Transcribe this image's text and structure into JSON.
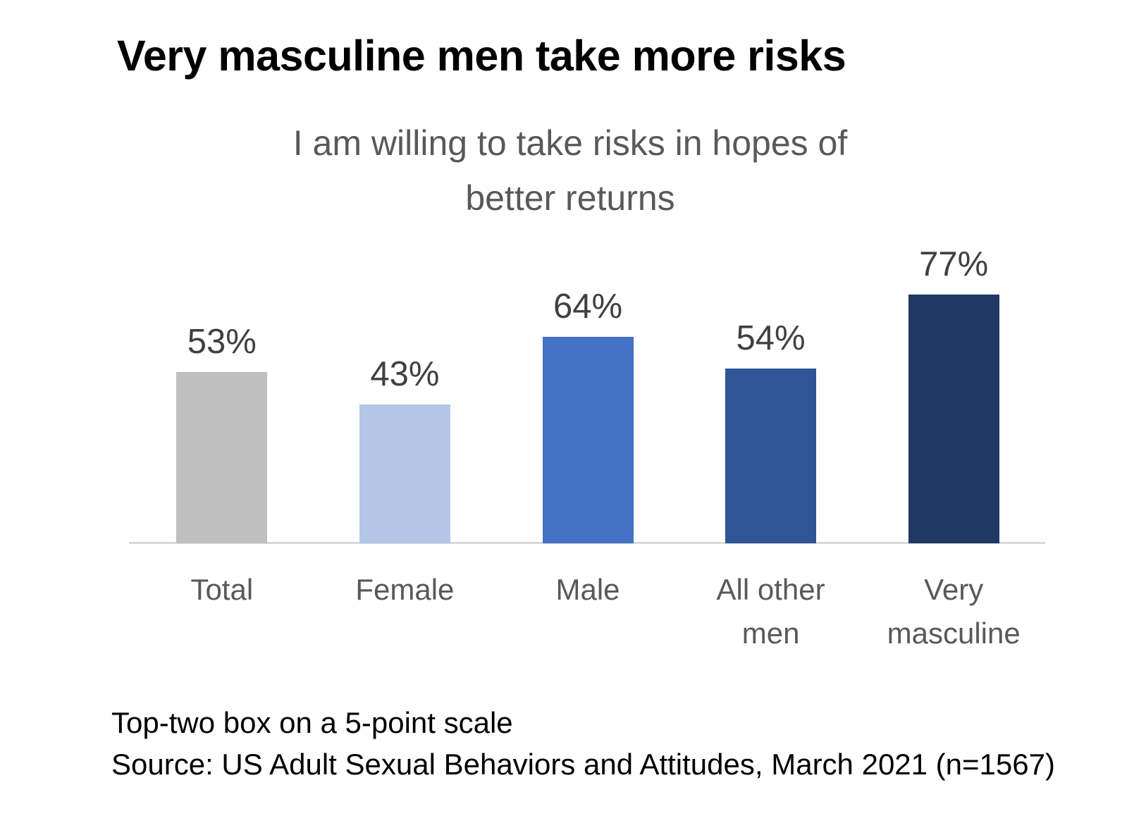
{
  "title": "Very masculine men take more risks",
  "chart_data": {
    "type": "bar",
    "title": "I am willing to take risks in hopes of better returns",
    "subtitle_lines": [
      "I am willing to take risks in hopes of",
      "better returns"
    ],
    "categories": [
      "Total",
      "Female",
      "Male",
      "All other men",
      "Very masculine"
    ],
    "values": [
      53,
      43,
      64,
      54,
      77
    ],
    "value_labels": [
      "53%",
      "43%",
      "64%",
      "54%",
      "77%"
    ],
    "bar_colors": [
      "#BFBFBF",
      "#B4C7E7",
      "#4472C4",
      "#2F5597",
      "#203864"
    ],
    "unit": "%",
    "ylim": [
      0,
      84
    ],
    "grid": false,
    "legend": false,
    "y_axis_visible": false,
    "axis_line_color": "#D9D9D9",
    "value_label_color": "#404040",
    "category_label_color": "#595959",
    "subtitle_color": "#595959"
  },
  "footer": {
    "line1": "Top-two box on a 5-point scale",
    "line2": "Source: US Adult Sexual Behaviors and Attitudes, March 2021 (n=1567)"
  }
}
